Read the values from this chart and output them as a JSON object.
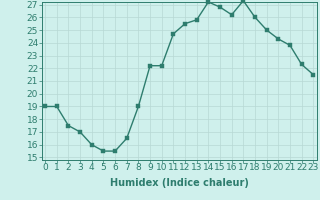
{
  "x": [
    0,
    1,
    2,
    3,
    4,
    5,
    6,
    7,
    8,
    9,
    10,
    11,
    12,
    13,
    14,
    15,
    16,
    17,
    18,
    19,
    20,
    21,
    22,
    23
  ],
  "y": [
    19,
    19,
    17.5,
    17,
    16,
    15.5,
    15.5,
    16.5,
    19,
    22.2,
    22.2,
    24.7,
    25.5,
    25.8,
    27.2,
    26.8,
    26.2,
    27.3,
    26,
    25,
    24.3,
    23.8,
    22.3,
    21.5
  ],
  "line_color": "#2e7d6e",
  "marker_color": "#2e7d6e",
  "bg_color": "#cff0ec",
  "grid_color": "#b8d8d4",
  "xlabel": "Humidex (Indice chaleur)",
  "ylim_min": 15,
  "ylim_max": 27,
  "xlim_min": 0,
  "xlim_max": 23,
  "yticks": [
    15,
    16,
    17,
    18,
    19,
    20,
    21,
    22,
    23,
    24,
    25,
    26,
    27
  ],
  "xticks": [
    0,
    1,
    2,
    3,
    4,
    5,
    6,
    7,
    8,
    9,
    10,
    11,
    12,
    13,
    14,
    15,
    16,
    17,
    18,
    19,
    20,
    21,
    22,
    23
  ],
  "xlabel_fontsize": 7,
  "tick_fontsize": 6.5,
  "line_width": 1.0,
  "marker_size": 2.5
}
